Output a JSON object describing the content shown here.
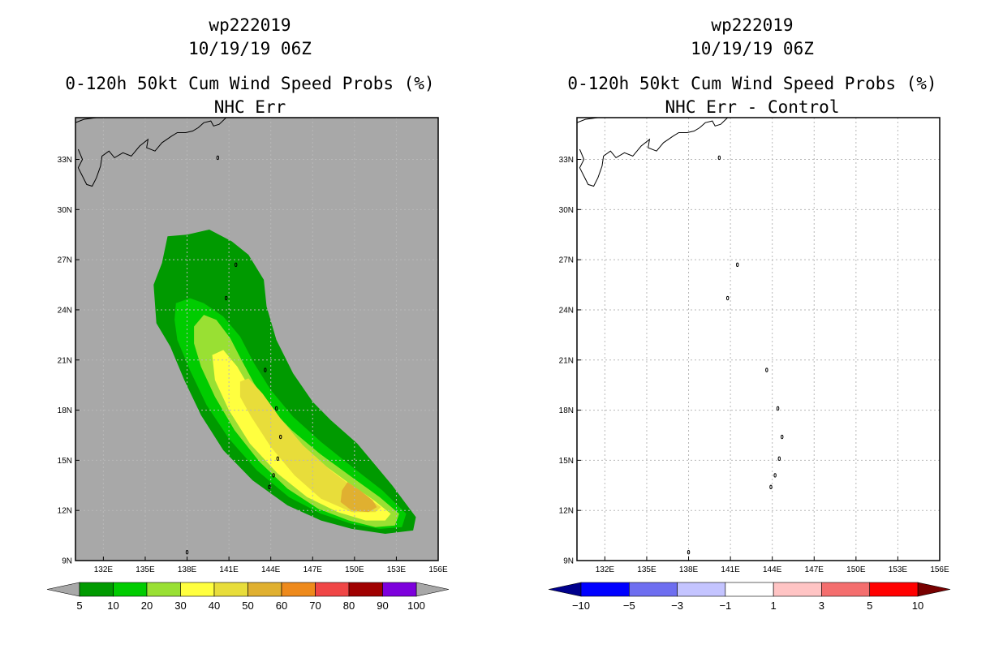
{
  "chart_data": [
    {
      "type": "heatmap",
      "title_lines": [
        "wp222019",
        "10/19/19 06Z",
        "0-120h 50kt Cum Wind Speed Probs (%)",
        "NHC Err"
      ],
      "xlabel": "",
      "ylabel": "",
      "x_ticks": [
        "132E",
        "135E",
        "138E",
        "141E",
        "144E",
        "147E",
        "150E",
        "153E",
        "156E"
      ],
      "y_ticks": [
        "9N",
        "12N",
        "15N",
        "18N",
        "21N",
        "24N",
        "27N",
        "30N",
        "33N"
      ],
      "xlim": [
        130,
        156
      ],
      "ylim": [
        9,
        35.5
      ],
      "grid": true,
      "background": "#a8a8a8",
      "contours": [
        {
          "level": 5,
          "color": "#009a00",
          "polygon": [
            [
              136.2,
              26.8
            ],
            [
              136.6,
              28.4
            ],
            [
              138,
              28.5
            ],
            [
              139.6,
              28.8
            ],
            [
              141.2,
              28.1
            ],
            [
              142.4,
              27.3
            ],
            [
              143.5,
              25.8
            ],
            [
              143.7,
              24.2
            ],
            [
              144.4,
              22.2
            ],
            [
              145.6,
              20.2
            ],
            [
              147,
              18.5
            ],
            [
              148.3,
              17.4
            ],
            [
              150.2,
              16
            ],
            [
              152.7,
              13.5
            ],
            [
              154.4,
              11.6
            ],
            [
              154.2,
              10.8
            ],
            [
              152.2,
              10.6
            ],
            [
              149.8,
              10.9
            ],
            [
              147.6,
              11.4
            ],
            [
              145.2,
              12.3
            ],
            [
              142.7,
              13.8
            ],
            [
              140.6,
              15.6
            ],
            [
              139,
              17.7
            ],
            [
              137.8,
              19.8
            ],
            [
              136.8,
              21.8
            ],
            [
              135.8,
              23.2
            ],
            [
              135.6,
              25.5
            ]
          ]
        },
        {
          "level": 10,
          "color": "#00cc00",
          "polygon": [
            [
              137.2,
              24.4
            ],
            [
              138.2,
              24.7
            ],
            [
              139.2,
              24.4
            ],
            [
              140.6,
              23.6
            ],
            [
              141.8,
              22.4
            ],
            [
              142.8,
              20.8
            ],
            [
              144,
              19.2
            ],
            [
              145.6,
              17.6
            ],
            [
              147.6,
              16.1
            ],
            [
              150,
              14.5
            ],
            [
              152,
              13.2
            ],
            [
              153.7,
              11.8
            ],
            [
              153.4,
              11
            ],
            [
              151.8,
              10.9
            ],
            [
              149.8,
              11.2
            ],
            [
              147.6,
              11.8
            ],
            [
              145.3,
              12.8
            ],
            [
              143,
              14.4
            ],
            [
              141,
              16.3
            ],
            [
              139.4,
              18.3
            ],
            [
              138.2,
              20.4
            ],
            [
              137.3,
              22.2
            ],
            [
              137.1,
              23.4
            ]
          ]
        },
        {
          "level": 20,
          "color": "#99e033",
          "polygon": [
            [
              138.5,
              23
            ],
            [
              139.2,
              23.7
            ],
            [
              140.1,
              23.4
            ],
            [
              141.1,
              22.3
            ],
            [
              141.9,
              21
            ],
            [
              142.8,
              19.6
            ],
            [
              144,
              18.1
            ],
            [
              145.5,
              16.8
            ],
            [
              147.5,
              15.4
            ],
            [
              149.8,
              14
            ],
            [
              151.8,
              12.8
            ],
            [
              153.2,
              11.8
            ],
            [
              152.9,
              11.1
            ],
            [
              151.5,
              11
            ],
            [
              149.6,
              11.4
            ],
            [
              147.4,
              12.1
            ],
            [
              145.2,
              13.3
            ],
            [
              143.2,
              14.9
            ],
            [
              141.4,
              16.8
            ],
            [
              140,
              18.8
            ],
            [
              139,
              20.6
            ],
            [
              138.5,
              22
            ]
          ]
        },
        {
          "level": 30,
          "color": "#ffff3f",
          "polygon": [
            [
              139.8,
              21.3
            ],
            [
              140.6,
              21.6
            ],
            [
              141.6,
              20.6
            ],
            [
              142.5,
              19.3
            ],
            [
              143.7,
              17.8
            ],
            [
              145.2,
              16.5
            ],
            [
              147.2,
              15.1
            ],
            [
              149.5,
              13.7
            ],
            [
              151.4,
              12.6
            ],
            [
              152.6,
              11.8
            ],
            [
              152.2,
              11.4
            ],
            [
              150.8,
              11.4
            ],
            [
              148.8,
              11.9
            ],
            [
              146.6,
              12.8
            ],
            [
              144.5,
              14.2
            ],
            [
              142.5,
              16
            ],
            [
              141,
              18
            ],
            [
              140,
              19.8
            ]
          ]
        },
        {
          "level": 40,
          "color": "#e8dd3a",
          "polygon": [
            [
              141.8,
              19.7
            ],
            [
              142.4,
              19.9
            ],
            [
              143.4,
              19
            ],
            [
              144.7,
              17.5
            ],
            [
              146.3,
              15.9
            ],
            [
              148.3,
              14.4
            ],
            [
              150.2,
              13.2
            ],
            [
              151.9,
              12.2
            ],
            [
              151.5,
              11.9
            ],
            [
              149.8,
              11.9
            ],
            [
              147.6,
              12.7
            ],
            [
              145.7,
              14.1
            ],
            [
              144,
              15.8
            ],
            [
              142.6,
              17.6
            ],
            [
              141.8,
              18.8
            ]
          ]
        },
        {
          "level": 50,
          "color": "#e0b030",
          "polygon": [
            [
              149.5,
              13.7
            ],
            [
              150.4,
              13.2
            ],
            [
              151.3,
              12.6
            ],
            [
              151.6,
              12.2
            ],
            [
              151,
              11.9
            ],
            [
              149.8,
              12
            ],
            [
              149,
              12.5
            ],
            [
              149.1,
              13.2
            ]
          ]
        }
      ],
      "islands": [
        [
          138,
          9.5
        ],
        [
          141.5,
          26.7
        ],
        [
          140.8,
          24.7
        ],
        [
          143.6,
          20.4
        ],
        [
          144.4,
          18.1
        ],
        [
          144.7,
          16.4
        ],
        [
          144.5,
          15.1
        ],
        [
          144.2,
          14.1
        ],
        [
          143.9,
          13.4
        ],
        [
          140.2,
          33.1
        ]
      ]
    },
    {
      "type": "heatmap",
      "title_lines": [
        "wp222019",
        "10/19/19 06Z",
        "0-120h 50kt Cum Wind Speed Probs (%)",
        "NHC Err - Control"
      ],
      "xlabel": "",
      "ylabel": "",
      "x_ticks": [
        "132E",
        "135E",
        "138E",
        "141E",
        "144E",
        "147E",
        "150E",
        "153E",
        "156E"
      ],
      "y_ticks": [
        "9N",
        "12N",
        "15N",
        "18N",
        "21N",
        "24N",
        "27N",
        "30N",
        "33N"
      ],
      "xlim": [
        130,
        156
      ],
      "ylim": [
        9,
        35.5
      ],
      "grid": true,
      "background": "#ffffff",
      "contours": [],
      "islands": [
        [
          138,
          9.5
        ],
        [
          141.5,
          26.7
        ],
        [
          140.8,
          24.7
        ],
        [
          143.6,
          20.4
        ],
        [
          144.4,
          18.1
        ],
        [
          144.7,
          16.4
        ],
        [
          144.5,
          15.1
        ],
        [
          144.2,
          14.1
        ],
        [
          143.9,
          13.4
        ],
        [
          140.2,
          33.1
        ]
      ]
    }
  ],
  "colorbars": [
    {
      "name": "probability",
      "labels": [
        "5",
        "10",
        "20",
        "30",
        "40",
        "50",
        "60",
        "70",
        "80",
        "90",
        "100"
      ],
      "colors": [
        "#009a00",
        "#00cc00",
        "#99e033",
        "#ffff3f",
        "#e8dd3a",
        "#e0b030",
        "#ee8a1c",
        "#f04646",
        "#a00000",
        "#7d00dc"
      ],
      "low_arrow_color": "#a8a8a8",
      "high_arrow_color": "#a8a8a8"
    },
    {
      "name": "difference",
      "labels": [
        "−10",
        "−5",
        "−3",
        "−1",
        "1",
        "3",
        "5",
        "10"
      ],
      "colors": [
        "#0000ff",
        "#6e6ef0",
        "#c4c4ff",
        "#ffffff",
        "#ffc4c4",
        "#f46e6e",
        "#ff0000"
      ],
      "low_arrow_color": "#00008c",
      "high_arrow_color": "#780000"
    }
  ]
}
